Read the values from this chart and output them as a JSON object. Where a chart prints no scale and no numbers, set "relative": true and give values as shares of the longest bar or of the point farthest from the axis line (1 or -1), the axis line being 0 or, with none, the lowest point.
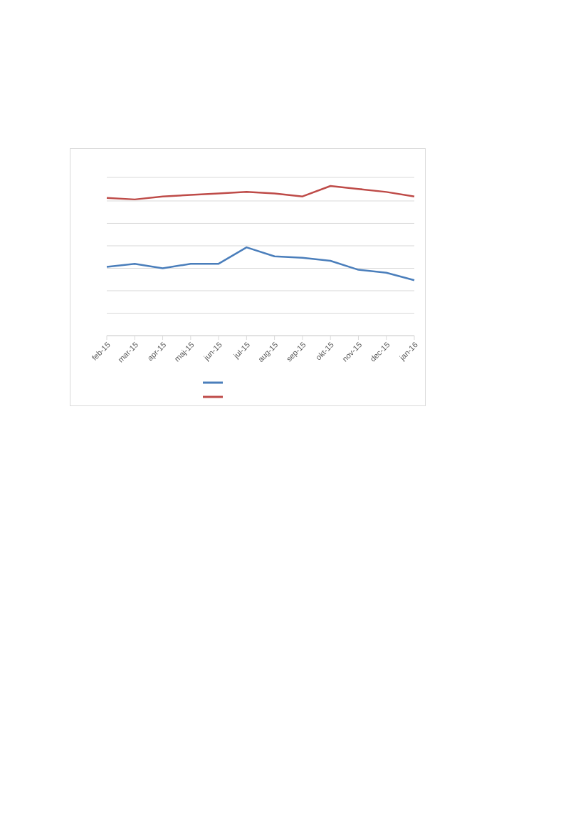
{
  "chart_data": {
    "type": "line",
    "relative": true,
    "categories": [
      "feb-15",
      "mar-15",
      "apr-15",
      "maj-15",
      "jun-15",
      "jul-15",
      "aug-15",
      "sep-15",
      "okt-15",
      "nov-15",
      "dec-15",
      "jan-16"
    ],
    "series": [
      {
        "color": "#4a7ebb",
        "values": [
          0.46,
          0.48,
          0.45,
          0.48,
          0.48,
          0.59,
          0.53,
          0.52,
          0.5,
          0.44,
          0.42,
          0.37
        ]
      },
      {
        "color": "#be4b48",
        "values": [
          0.92,
          0.91,
          0.93,
          0.94,
          0.95,
          0.96,
          0.95,
          0.93,
          1,
          0.98,
          0.96,
          0.93
        ]
      }
    ],
    "grid": "y",
    "marker": "none",
    "line_style": "solid"
  }
}
